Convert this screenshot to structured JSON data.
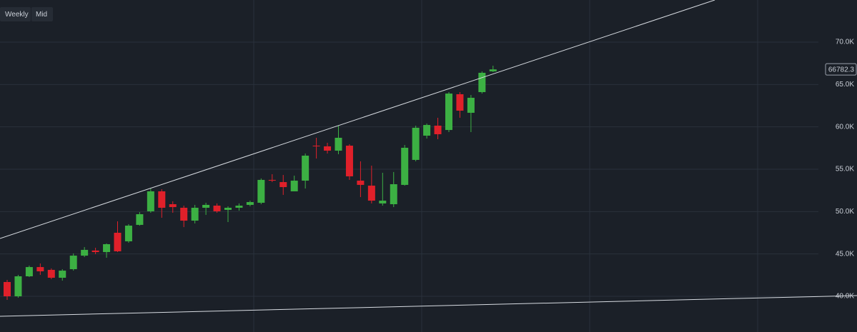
{
  "toolbar": [
    "Weekly",
    "Mid"
  ],
  "chart_data": {
    "type": "candlestick",
    "open": [
      41686,
      40000,
      42360,
      43450,
      43120,
      42190,
      43200,
      44800,
      45400,
      45220,
      47500,
      46490,
      48430,
      50030,
      52390,
      50870,
      50450,
      48930,
      50450,
      50700,
      50200,
      50450,
      50790,
      51040,
      53740,
      53480,
      52390,
      53650,
      57780,
      57700,
      57190,
      57780,
      53650,
      53060,
      50960,
      50870,
      53150,
      56100,
      58960,
      60140,
      59630,
      63850,
      61660,
      64100,
      66550
    ],
    "high": [
      41940,
      42530,
      43620,
      43880,
      43290,
      43200,
      45060,
      45810,
      45730,
      46240,
      48850,
      48510,
      49940,
      52720,
      52640,
      51210,
      50700,
      50790,
      51040,
      50960,
      50620,
      50960,
      51290,
      53910,
      54410,
      54320,
      54240,
      56850,
      58710,
      58120,
      60140,
      57950,
      55930,
      55420,
      54580,
      54670,
      57860,
      60140,
      60390,
      61070,
      64100,
      64100,
      63760,
      66550,
      67220
    ],
    "low": [
      39580,
      39830,
      42270,
      42530,
      42020,
      41850,
      43030,
      44630,
      44970,
      44550,
      45220,
      46320,
      48340,
      49860,
      49270,
      49860,
      48170,
      48600,
      49610,
      49860,
      48760,
      50110,
      50620,
      50870,
      53480,
      51970,
      52390,
      52720,
      56260,
      56850,
      56770,
      53740,
      51710,
      50960,
      50700,
      50530,
      53060,
      55930,
      58620,
      58540,
      59380,
      61070,
      59380,
      63930,
      66460
    ],
    "close": [
      40000,
      42360,
      43450,
      42950,
      42190,
      43030,
      44800,
      45480,
      45220,
      46150,
      45310,
      48340,
      49690,
      52390,
      50450,
      50530,
      48930,
      50450,
      50790,
      50030,
      50450,
      50700,
      51120,
      53740,
      53650,
      52890,
      53650,
      56600,
      57700,
      57190,
      58710,
      54160,
      53150,
      51290,
      51290,
      53230,
      57530,
      59890,
      60220,
      59130,
      63930,
      61910,
      63430,
      66380,
      66782.3
    ],
    "up_color": "#3cb043",
    "down_color": "#e0202a",
    "last_price": 66782.3,
    "ylim": [
      35786,
      74972
    ],
    "yticks": [
      {
        "value": 40000,
        "label": "40.0K"
      },
      {
        "value": 45000,
        "label": "45.0K"
      },
      {
        "value": 50000,
        "label": "50.0K"
      },
      {
        "value": 55000,
        "label": "55.0K"
      },
      {
        "value": 60000,
        "label": "60.0K"
      },
      {
        "value": 65000,
        "label": "65.0K"
      },
      {
        "value": 70000,
        "label": "70.0K"
      }
    ],
    "grid": true
  }
}
